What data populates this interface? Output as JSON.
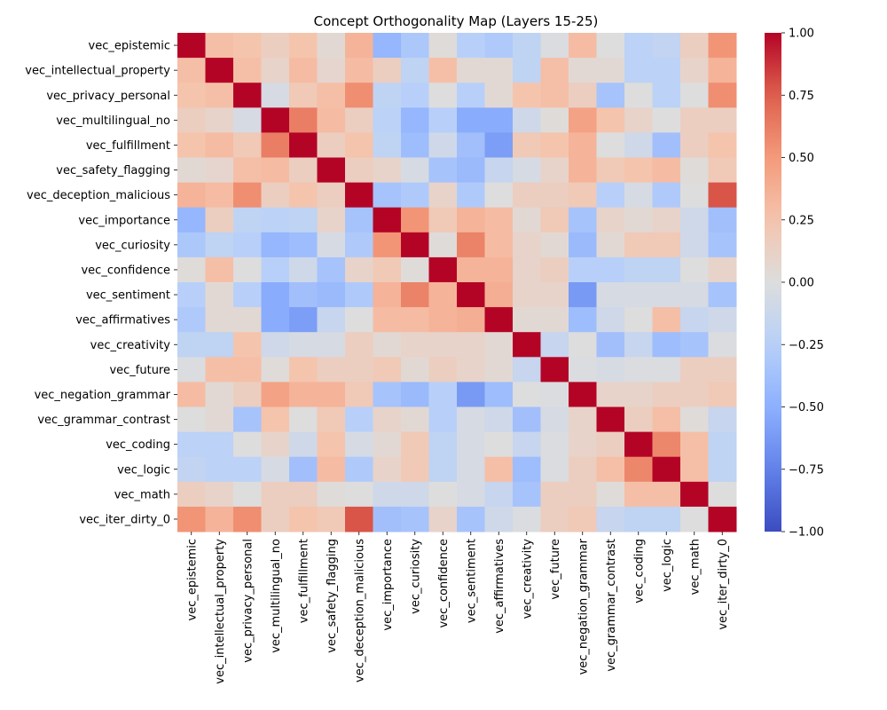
{
  "chart_data": {
    "type": "heatmap",
    "title": "Concept Orthogonality Map (Layers 15-25)",
    "xlabel": "",
    "ylabel": "",
    "labels": [
      "vec_epistemic",
      "vec_intellectual_property",
      "vec_privacy_personal",
      "vec_multilingual_no",
      "vec_fulfillment",
      "vec_safety_flagging",
      "vec_deception_malicious",
      "vec_importance",
      "vec_curiosity",
      "vec_confidence",
      "vec_sentiment",
      "vec_affirmatives",
      "vec_creativity",
      "vec_future",
      "vec_negation_grammar",
      "vec_grammar_contrast",
      "vec_coding",
      "vec_logic",
      "vec_math",
      "vec_iter_dirty_0"
    ],
    "colormap": "coolwarm",
    "vmin": -1.0,
    "vmax": 1.0,
    "colorbar_ticks": [
      -1.0,
      -0.75,
      -0.5,
      -0.25,
      0.0,
      0.25,
      0.5,
      0.75,
      1.0
    ],
    "colorbar_tick_labels": [
      "−1.00",
      "−0.75",
      "−0.50",
      "−0.25",
      "0.00",
      "0.25",
      "0.50",
      "0.75",
      "1.00"
    ],
    "matrix": [
      [
        1.0,
        0.28,
        0.25,
        0.15,
        0.25,
        0.05,
        0.35,
        -0.45,
        -0.32,
        0.02,
        -0.25,
        -0.3,
        -0.2,
        -0.02,
        0.3,
        0.0,
        -0.22,
        -0.18,
        0.15,
        0.52
      ],
      [
        0.28,
        1.0,
        0.28,
        0.1,
        0.3,
        0.08,
        0.3,
        0.15,
        -0.2,
        0.28,
        0.05,
        0.05,
        -0.2,
        0.28,
        0.05,
        0.05,
        -0.22,
        -0.22,
        0.1,
        0.35
      ],
      [
        0.25,
        0.28,
        1.0,
        -0.05,
        0.2,
        0.28,
        0.55,
        -0.2,
        -0.25,
        0.0,
        -0.25,
        0.05,
        0.25,
        0.28,
        0.15,
        -0.35,
        0.0,
        -0.22,
        0.0,
        0.55
      ],
      [
        0.15,
        0.1,
        -0.05,
        1.0,
        0.62,
        0.3,
        0.15,
        -0.22,
        -0.45,
        -0.25,
        -0.52,
        -0.52,
        -0.1,
        0.02,
        0.45,
        0.25,
        0.1,
        0.0,
        0.15,
        0.15
      ],
      [
        0.25,
        0.3,
        0.2,
        0.62,
        1.0,
        0.15,
        0.25,
        -0.2,
        -0.4,
        -0.1,
        -0.38,
        -0.6,
        0.2,
        0.25,
        0.35,
        0.0,
        -0.1,
        -0.38,
        0.15,
        0.25
      ],
      [
        0.05,
        0.08,
        0.28,
        0.3,
        0.15,
        1.0,
        0.15,
        0.1,
        -0.05,
        -0.35,
        -0.42,
        -0.15,
        -0.05,
        0.1,
        0.35,
        0.2,
        0.25,
        0.3,
        0.02,
        0.2
      ],
      [
        0.35,
        0.3,
        0.55,
        0.15,
        0.25,
        0.15,
        1.0,
        -0.35,
        -0.3,
        0.1,
        -0.3,
        0.0,
        0.15,
        0.15,
        0.2,
        -0.25,
        -0.05,
        -0.3,
        0.0,
        0.78
      ],
      [
        -0.45,
        0.15,
        -0.2,
        -0.22,
        -0.2,
        0.1,
        -0.35,
        1.0,
        0.52,
        0.2,
        0.35,
        0.3,
        0.05,
        0.2,
        -0.35,
        0.1,
        0.05,
        0.1,
        -0.1,
        -0.38
      ],
      [
        -0.32,
        -0.2,
        -0.25,
        -0.45,
        -0.4,
        -0.05,
        -0.3,
        0.52,
        1.0,
        0.02,
        0.6,
        0.3,
        0.1,
        0.05,
        -0.42,
        0.05,
        0.2,
        0.2,
        -0.1,
        -0.35
      ],
      [
        0.02,
        0.28,
        0.0,
        -0.25,
        -0.1,
        -0.35,
        0.1,
        0.2,
        0.02,
        1.0,
        0.35,
        0.35,
        0.1,
        0.15,
        -0.25,
        -0.25,
        -0.2,
        -0.2,
        0.0,
        0.1
      ],
      [
        -0.25,
        0.05,
        -0.25,
        -0.52,
        -0.38,
        -0.42,
        -0.3,
        0.35,
        0.6,
        0.35,
        1.0,
        0.38,
        0.1,
        0.1,
        -0.62,
        -0.05,
        -0.05,
        -0.05,
        -0.05,
        -0.35
      ],
      [
        -0.3,
        0.05,
        0.05,
        -0.52,
        -0.6,
        -0.15,
        0.0,
        0.3,
        0.3,
        0.35,
        0.38,
        1.0,
        0.05,
        0.05,
        -0.4,
        -0.1,
        0.0,
        0.28,
        -0.15,
        -0.1
      ],
      [
        -0.2,
        -0.2,
        0.25,
        -0.1,
        -0.05,
        -0.05,
        0.15,
        0.05,
        0.1,
        0.1,
        0.1,
        0.05,
        1.0,
        -0.15,
        0.0,
        -0.38,
        -0.15,
        -0.4,
        -0.35,
        -0.02
      ],
      [
        -0.02,
        0.28,
        0.28,
        0.02,
        0.25,
        0.15,
        0.15,
        0.2,
        0.05,
        0.15,
        0.1,
        0.05,
        -0.15,
        1.0,
        -0.02,
        -0.05,
        -0.02,
        -0.02,
        0.15,
        0.15
      ],
      [
        0.3,
        0.05,
        0.15,
        0.45,
        0.35,
        0.35,
        0.2,
        -0.35,
        -0.42,
        -0.25,
        -0.62,
        -0.4,
        0.0,
        -0.02,
        1.0,
        0.1,
        0.1,
        0.15,
        0.15,
        0.2
      ],
      [
        0.0,
        0.05,
        -0.35,
        0.25,
        0.0,
        0.2,
        -0.25,
        0.1,
        0.05,
        -0.25,
        -0.05,
        -0.1,
        -0.38,
        -0.05,
        0.1,
        1.0,
        0.15,
        0.28,
        0.02,
        -0.15
      ],
      [
        -0.22,
        -0.22,
        0.0,
        0.1,
        -0.1,
        0.25,
        -0.05,
        0.05,
        0.2,
        -0.2,
        -0.05,
        0.0,
        -0.15,
        -0.02,
        0.1,
        0.15,
        1.0,
        0.58,
        0.28,
        -0.2
      ],
      [
        -0.18,
        -0.22,
        -0.22,
        -0.05,
        -0.38,
        0.3,
        -0.3,
        0.1,
        0.2,
        -0.2,
        -0.05,
        0.28,
        -0.4,
        -0.02,
        0.15,
        0.28,
        0.58,
        1.0,
        0.28,
        -0.2
      ],
      [
        0.15,
        0.1,
        0.0,
        0.15,
        0.15,
        0.02,
        0.0,
        -0.1,
        -0.1,
        0.0,
        -0.05,
        -0.15,
        -0.35,
        0.15,
        0.15,
        0.02,
        0.28,
        0.28,
        1.0,
        0.0
      ],
      [
        0.52,
        0.35,
        0.55,
        0.15,
        0.25,
        0.2,
        0.78,
        -0.38,
        -0.35,
        0.1,
        -0.35,
        -0.1,
        -0.02,
        0.15,
        0.2,
        -0.15,
        -0.2,
        -0.2,
        0.0,
        1.0
      ]
    ]
  }
}
